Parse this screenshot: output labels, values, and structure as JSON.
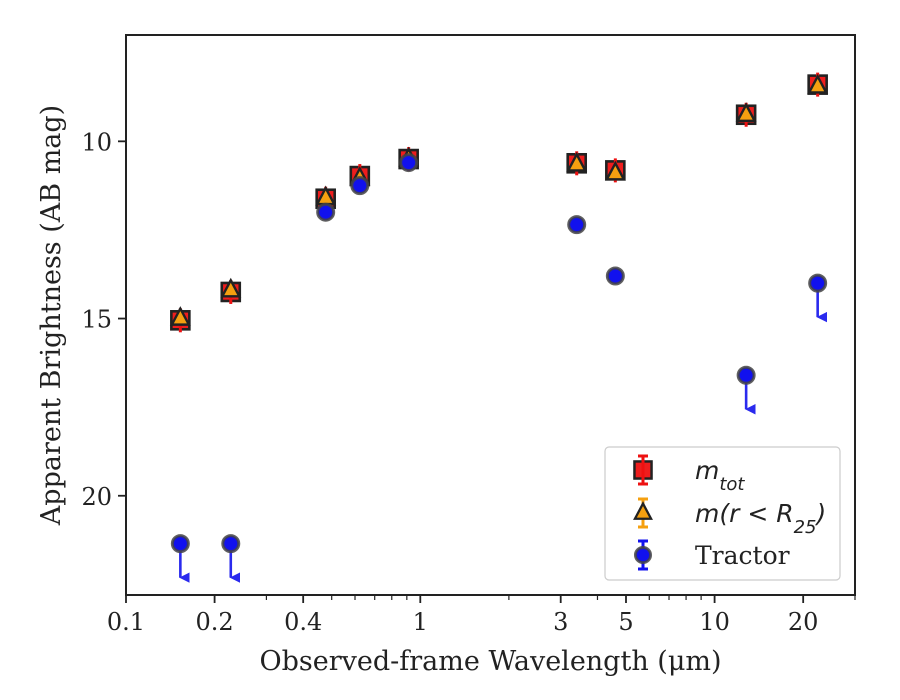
{
  "chart_data": {
    "type": "scatter",
    "xlabel": "Observed-frame Wavelength (μm)",
    "ylabel": "Apparent Brightness (AB mag)",
    "x_scale": "log",
    "xlim": [
      0.1,
      30
    ],
    "ylim": [
      22.8,
      7.0
    ],
    "y_inverted": true,
    "x_ticks": [
      {
        "value": 0.1,
        "label": "0.1"
      },
      {
        "value": 0.2,
        "label": "0.2"
      },
      {
        "value": 0.4,
        "label": "0.4"
      },
      {
        "value": 1,
        "label": "1"
      },
      {
        "value": 3,
        "label": "3"
      },
      {
        "value": 5,
        "label": "5"
      },
      {
        "value": 10,
        "label": "10"
      },
      {
        "value": 20,
        "label": "20"
      }
    ],
    "y_ticks": [
      {
        "value": 10,
        "label": "10"
      },
      {
        "value": 15,
        "label": "15"
      },
      {
        "value": 20,
        "label": "20"
      }
    ],
    "grid": false,
    "legend_position": "lower-right",
    "legend": [
      {
        "label": "m_tot",
        "text_main": "m",
        "text_sub": "tot",
        "marker": "square",
        "color": "#ee1111"
      },
      {
        "label": "m(r < R_25)",
        "text_main": "m(r < R",
        "text_sub": "25",
        "text_end": ")",
        "marker": "triangle",
        "color": "#f5a010"
      },
      {
        "label": "Tractor",
        "text_main": "Tractor",
        "marker": "circle",
        "color": "#1111ee"
      }
    ],
    "series": [
      {
        "name": "m_tot",
        "marker": "square",
        "color": "#ee1111",
        "points": [
          {
            "x": 0.153,
            "y": 15.05
          },
          {
            "x": 0.227,
            "y": 14.25
          },
          {
            "x": 0.477,
            "y": 11.62
          },
          {
            "x": 0.623,
            "y": 10.98
          },
          {
            "x": 0.913,
            "y": 10.5
          },
          {
            "x": 3.4,
            "y": 10.62
          },
          {
            "x": 4.6,
            "y": 10.82
          },
          {
            "x": 12.8,
            "y": 9.25
          },
          {
            "x": 22.4,
            "y": 8.4
          }
        ]
      },
      {
        "name": "m(r < R_25)",
        "marker": "triangle",
        "color": "#f5a010",
        "points": [
          {
            "x": 0.153,
            "y": 15.0
          },
          {
            "x": 0.227,
            "y": 14.2
          },
          {
            "x": 0.477,
            "y": 11.6
          },
          {
            "x": 0.623,
            "y": 11.05
          },
          {
            "x": 0.913,
            "y": 10.5
          },
          {
            "x": 3.4,
            "y": 10.65
          },
          {
            "x": 4.6,
            "y": 10.9
          },
          {
            "x": 12.8,
            "y": 9.25
          },
          {
            "x": 22.4,
            "y": 8.45
          }
        ]
      },
      {
        "name": "Tractor",
        "marker": "circle",
        "color": "#1111ee",
        "points": [
          {
            "x": 0.153,
            "y": 21.35,
            "upper_limit": true
          },
          {
            "x": 0.227,
            "y": 21.35,
            "upper_limit": true
          },
          {
            "x": 0.477,
            "y": 12.0
          },
          {
            "x": 0.623,
            "y": 11.25
          },
          {
            "x": 0.913,
            "y": 10.6
          },
          {
            "x": 3.4,
            "y": 12.35
          },
          {
            "x": 4.6,
            "y": 13.8
          },
          {
            "x": 12.8,
            "y": 16.6,
            "upper_limit": true
          },
          {
            "x": 22.4,
            "y": 14.0,
            "upper_limit": true
          }
        ]
      }
    ]
  }
}
